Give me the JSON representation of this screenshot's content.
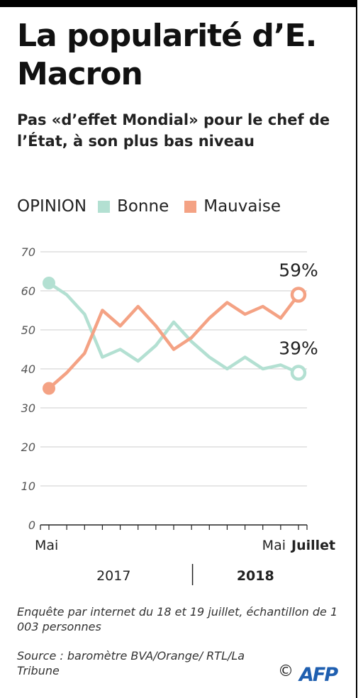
{
  "title": "La popularité d’E. Macron",
  "subtitle": "Pas «d’effet Mondial» pour le chef de l’État, à son plus bas niveau",
  "footer": {
    "note": "Enquête par internet du 18 et 19 juillet, échantillon de 1 003 personnes",
    "source": "Source : baromètre BVA/Orange/ RTL/La Tribune",
    "copyright": "©",
    "logo_text": "AFP"
  },
  "colors": {
    "bonne": "#b3e0d2",
    "mauvaise": "#f4a284",
    "axis": "#222222",
    "grid": "#cccccc",
    "logo": "#1f5fb0"
  },
  "chart_data": {
    "type": "line",
    "legend_title": "OPINION",
    "legend_position": "top",
    "ylim": [
      0,
      70
    ],
    "yticks": [
      0,
      10,
      20,
      30,
      40,
      50,
      60,
      70
    ],
    "grid": true,
    "x": [
      "2017-05",
      "2017-06",
      "2017-07",
      "2017-08",
      "2017-09",
      "2017-10",
      "2017-11",
      "2017-12",
      "2018-01",
      "2018-02",
      "2018-03",
      "2018-04",
      "2018-05",
      "2018-06",
      "2018-07"
    ],
    "x_tick_labels": [
      {
        "x": "2017-05",
        "label": "Mai",
        "bold": false
      },
      {
        "x": "2018-05",
        "label": "Mai",
        "bold": false
      },
      {
        "x": "2018-07",
        "label": "Juillet",
        "bold": true
      }
    ],
    "years": [
      {
        "label": "2017",
        "from": "2017-05",
        "to": "2017-12",
        "bold": false
      },
      {
        "label": "2018",
        "from": "2018-01",
        "to": "2018-07",
        "bold": true
      }
    ],
    "series": [
      {
        "name": "Bonne",
        "values": [
          62,
          59,
          54,
          43,
          45,
          42,
          46,
          52,
          47,
          43,
          40,
          43,
          40,
          41,
          39
        ],
        "end_label": "39%"
      },
      {
        "name": "Mauvaise",
        "values": [
          35,
          39,
          44,
          55,
          51,
          56,
          51,
          45,
          48,
          53,
          57,
          54,
          56,
          53,
          59
        ],
        "end_label": "59%"
      }
    ]
  }
}
